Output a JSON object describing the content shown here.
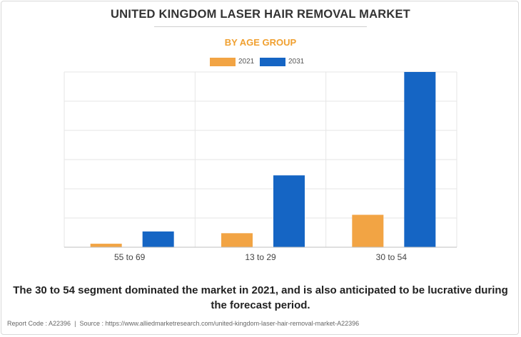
{
  "chart_data": {
    "type": "bar",
    "title": "UNITED KINGDOM LASER HAIR REMOVAL MARKET",
    "subtitle": "BY AGE GROUP",
    "categories": [
      "55 to 69",
      "13 to 29",
      "30 to 54"
    ],
    "series": [
      {
        "name": "2021",
        "color": "#f2a444",
        "values": [
          2,
          8,
          18.5
        ]
      },
      {
        "name": "2031",
        "color": "#1565c4",
        "values": [
          9,
          41,
          100
        ]
      }
    ],
    "ylim": [
      0,
      100
    ],
    "grid": true,
    "legend": "top-center"
  },
  "summary": "The 30 to 54 segment dominated the market in 2021, and is also anticipated to be lucrative during the forecast period.",
  "footer": {
    "report_code": "Report Code : A22396",
    "separator": "|",
    "source": "Source : https://www.alliedmarketresearch.com/united-kingdom-laser-hair-removal-market-A22396"
  }
}
